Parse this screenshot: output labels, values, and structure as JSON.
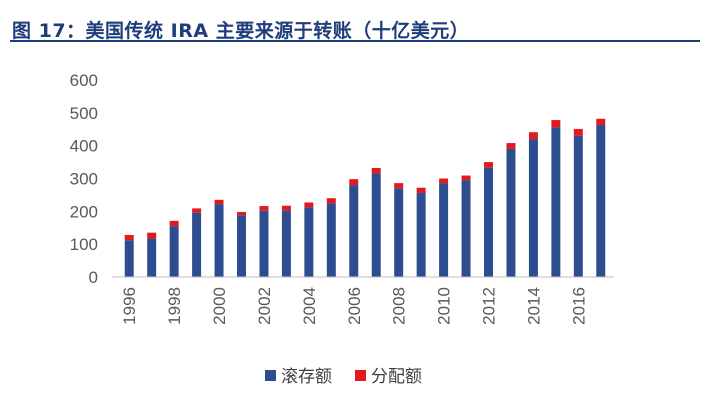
{
  "title": "图 17：美国传统 IRA 主要来源于转账（十亿美元）",
  "chart_data": {
    "type": "bar",
    "stacked": true,
    "title": "图 17：美国传统 IRA 主要来源于转账（十亿美元）",
    "xlabel": "",
    "ylabel": "",
    "ylim": [
      0,
      600
    ],
    "yticks": [
      0,
      100,
      200,
      300,
      400,
      500,
      600
    ],
    "grid": false,
    "legend_position": "bottom",
    "categories": [
      "1996",
      "1997",
      "1998",
      "1999",
      "2000",
      "2001",
      "2002",
      "2003",
      "2004",
      "2005",
      "2006",
      "2007",
      "2008",
      "2009",
      "2010",
      "2011",
      "2012",
      "2013",
      "2014",
      "2015",
      "2016",
      "2017"
    ],
    "x_tick_labels": [
      "1996",
      "1998",
      "2000",
      "2002",
      "2004",
      "2006",
      "2008",
      "2010",
      "2012",
      "2014",
      "2016"
    ],
    "series": [
      {
        "name": "滚存额",
        "color": "#2e4d8f",
        "values": [
          112,
          117,
          155,
          196,
          222,
          188,
          202,
          203,
          212,
          225,
          280,
          315,
          270,
          256,
          285,
          295,
          333,
          390,
          420,
          456,
          430,
          463
        ]
      },
      {
        "name": "分配额",
        "color": "#e31a1c",
        "values": [
          16,
          18,
          16,
          13,
          13,
          10,
          14,
          14,
          15,
          15,
          18,
          17,
          16,
          16,
          15,
          14,
          17,
          18,
          21,
          22,
          21,
          19
        ]
      }
    ]
  }
}
